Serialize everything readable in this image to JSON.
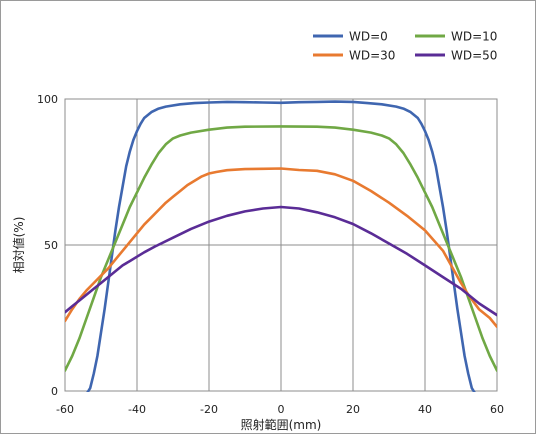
{
  "chart_data": {
    "type": "line",
    "title": "",
    "xlabel": "照射範囲(mm)",
    "ylabel": "相対値(%)",
    "xlim": [
      -60,
      60
    ],
    "ylim": [
      0,
      100
    ],
    "xticks": [
      -60,
      -40,
      -20,
      0,
      20,
      40,
      60
    ],
    "yticks": [
      0,
      50,
      100
    ],
    "grid": true,
    "legend_position": "top-right",
    "series": [
      {
        "name": "WD=0",
        "color": "#3f66b0",
        "points": [
          [
            -60,
            -4
          ],
          [
            -56,
            -4
          ],
          [
            -54,
            -1
          ],
          [
            -53,
            1
          ],
          [
            -52,
            6
          ],
          [
            -51,
            12
          ],
          [
            -50,
            20
          ],
          [
            -49,
            28
          ],
          [
            -48,
            37
          ],
          [
            -47,
            46
          ],
          [
            -46,
            55
          ],
          [
            -45,
            63
          ],
          [
            -44,
            70
          ],
          [
            -43,
            77
          ],
          [
            -42,
            82
          ],
          [
            -41,
            86
          ],
          [
            -40,
            89
          ],
          [
            -39,
            91.5
          ],
          [
            -38,
            93.5
          ],
          [
            -36,
            95.5
          ],
          [
            -34,
            96.7
          ],
          [
            -32,
            97.4
          ],
          [
            -28,
            98.2
          ],
          [
            -24,
            98.6
          ],
          [
            -20,
            98.8
          ],
          [
            -15,
            99
          ],
          [
            -10,
            98.9
          ],
          [
            -5,
            98.8
          ],
          [
            0,
            98.7
          ],
          [
            5,
            98.9
          ],
          [
            10,
            99
          ],
          [
            15,
            99.1
          ],
          [
            20,
            99
          ],
          [
            24,
            98.6
          ],
          [
            28,
            98.2
          ],
          [
            32,
            97.4
          ],
          [
            34,
            96.7
          ],
          [
            36,
            95.5
          ],
          [
            38,
            93.5
          ],
          [
            39,
            91.5
          ],
          [
            40,
            89
          ],
          [
            41,
            86
          ],
          [
            42,
            82
          ],
          [
            43,
            77
          ],
          [
            44,
            70
          ],
          [
            45,
            63
          ],
          [
            46,
            55
          ],
          [
            47,
            46
          ],
          [
            48,
            37
          ],
          [
            49,
            28
          ],
          [
            50,
            20
          ],
          [
            51,
            12
          ],
          [
            52,
            6
          ],
          [
            53,
            1
          ],
          [
            54,
            -1
          ],
          [
            56,
            -4
          ],
          [
            60,
            -4
          ]
        ]
      },
      {
        "name": "WD=10",
        "color": "#70a845",
        "points": [
          [
            -60,
            7
          ],
          [
            -58,
            12
          ],
          [
            -56,
            18
          ],
          [
            -54,
            25
          ],
          [
            -52,
            32
          ],
          [
            -50,
            39
          ],
          [
            -48,
            45
          ],
          [
            -46,
            51
          ],
          [
            -44,
            57
          ],
          [
            -42,
            63
          ],
          [
            -40,
            68
          ],
          [
            -38,
            73
          ],
          [
            -36,
            77.5
          ],
          [
            -34,
            81.5
          ],
          [
            -32,
            84.5
          ],
          [
            -30,
            86.5
          ],
          [
            -28,
            87.5
          ],
          [
            -25,
            88.5
          ],
          [
            -20,
            89.5
          ],
          [
            -15,
            90.2
          ],
          [
            -10,
            90.5
          ],
          [
            0,
            90.6
          ],
          [
            10,
            90.5
          ],
          [
            15,
            90.2
          ],
          [
            20,
            89.5
          ],
          [
            25,
            88.5
          ],
          [
            28,
            87.5
          ],
          [
            30,
            86.5
          ],
          [
            32,
            84.5
          ],
          [
            34,
            81.5
          ],
          [
            36,
            77.5
          ],
          [
            38,
            73
          ],
          [
            40,
            68
          ],
          [
            42,
            63
          ],
          [
            44,
            57
          ],
          [
            46,
            51
          ],
          [
            48,
            45
          ],
          [
            50,
            39
          ],
          [
            52,
            32
          ],
          [
            54,
            25
          ],
          [
            56,
            18
          ],
          [
            58,
            12
          ],
          [
            60,
            7
          ]
        ]
      },
      {
        "name": "WD=30",
        "color": "#e87a30",
        "points": [
          [
            -60,
            24
          ],
          [
            -58,
            28
          ],
          [
            -56,
            31.5
          ],
          [
            -54,
            34.5
          ],
          [
            -52,
            37
          ],
          [
            -50,
            39.5
          ],
          [
            -48,
            42
          ],
          [
            -46,
            45
          ],
          [
            -44,
            48
          ],
          [
            -42,
            51
          ],
          [
            -40,
            54
          ],
          [
            -38,
            57
          ],
          [
            -36,
            59.5
          ],
          [
            -34,
            62
          ],
          [
            -32,
            64.5
          ],
          [
            -30,
            66.5
          ],
          [
            -28,
            68.5
          ],
          [
            -26,
            70.5
          ],
          [
            -24,
            72
          ],
          [
            -22,
            73.5
          ],
          [
            -20,
            74.5
          ],
          [
            -18,
            75
          ],
          [
            -15,
            75.6
          ],
          [
            -10,
            76
          ],
          [
            -5,
            76.1
          ],
          [
            0,
            76.2
          ],
          [
            5,
            75.7
          ],
          [
            10,
            75.4
          ],
          [
            15,
            74.2
          ],
          [
            20,
            72
          ],
          [
            25,
            68.5
          ],
          [
            30,
            64.5
          ],
          [
            35,
            60
          ],
          [
            40,
            55
          ],
          [
            45,
            48
          ],
          [
            50,
            37
          ],
          [
            52,
            33
          ],
          [
            55,
            28
          ],
          [
            58,
            25
          ],
          [
            60,
            22
          ]
        ]
      },
      {
        "name": "WD=50",
        "color": "#5a2c96",
        "points": [
          [
            -60,
            27
          ],
          [
            -58,
            29
          ],
          [
            -56,
            31
          ],
          [
            -54,
            33
          ],
          [
            -52,
            35
          ],
          [
            -50,
            37
          ],
          [
            -48,
            39
          ],
          [
            -46,
            41
          ],
          [
            -44,
            43
          ],
          [
            -42,
            44.5
          ],
          [
            -40,
            46
          ],
          [
            -38,
            47.5
          ],
          [
            -35,
            49.5
          ],
          [
            -30,
            52.5
          ],
          [
            -25,
            55.5
          ],
          [
            -20,
            58
          ],
          [
            -15,
            60
          ],
          [
            -10,
            61.5
          ],
          [
            -5,
            62.5
          ],
          [
            0,
            63
          ],
          [
            5,
            62.5
          ],
          [
            10,
            61.2
          ],
          [
            15,
            59.5
          ],
          [
            20,
            57.2
          ],
          [
            25,
            54
          ],
          [
            30,
            50.5
          ],
          [
            35,
            47
          ],
          [
            40,
            43
          ],
          [
            45,
            39
          ],
          [
            50,
            35
          ],
          [
            55,
            30
          ],
          [
            60,
            26
          ]
        ]
      }
    ]
  }
}
